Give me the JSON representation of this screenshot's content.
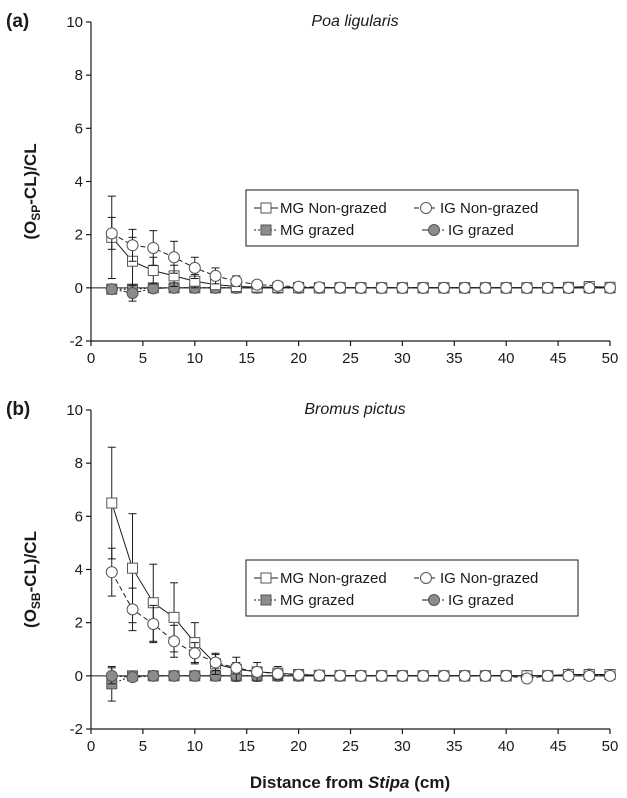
{
  "chart_data": [
    {
      "type": "line",
      "panel_label": "(a)",
      "title": "Poa ligularis",
      "ylabel_parts": [
        "(O",
        "SP",
        "-CL)/CL"
      ],
      "xlim": [
        0,
        50
      ],
      "ylim": [
        -2,
        10
      ],
      "x_ticks": [
        "0",
        "5",
        "10",
        "15",
        "20",
        "25",
        "30",
        "35",
        "40",
        "45",
        "50"
      ],
      "y_ticks": [
        "-2",
        "0",
        "2",
        "4",
        "6",
        "8",
        "10"
      ],
      "x": [
        2,
        4,
        6,
        8,
        10,
        12,
        14,
        16,
        18,
        20,
        22,
        24,
        26,
        28,
        30,
        32,
        34,
        36,
        38,
        40,
        42,
        44,
        46,
        48,
        50
      ],
      "series": [
        {
          "name": "MG Non-grazed",
          "marker": "square",
          "fill": "#ffffff",
          "line": "solid",
          "values": [
            1.9,
            1.0,
            0.65,
            0.45,
            0.25,
            0.12,
            0.05,
            0.03,
            0.02,
            0.01,
            0,
            0,
            0,
            0,
            0,
            0,
            0,
            0,
            0,
            0,
            0,
            0,
            0.02,
            0.05,
            0.02
          ],
          "err": [
            1.55,
            0.9,
            0.5,
            0.4,
            0.25,
            0.15,
            0.1,
            0.08,
            0.05,
            0.05,
            0.03,
            0.03,
            0.03,
            0.03,
            0.03,
            0.03,
            0.03,
            0.03,
            0.03,
            0.03,
            0.03,
            0.03,
            0.05,
            0.08,
            0.05
          ]
        },
        {
          "name": "IG Non-grazed",
          "marker": "circle",
          "fill": "#ffffff",
          "line": "dashed",
          "values": [
            2.05,
            1.6,
            1.5,
            1.15,
            0.75,
            0.45,
            0.25,
            0.12,
            0.08,
            0.04,
            0.02,
            0.01,
            0,
            0,
            0,
            0,
            0,
            0,
            0,
            0,
            0,
            0,
            0,
            0,
            0
          ],
          "err": [
            0.6,
            0.6,
            0.65,
            0.6,
            0.4,
            0.3,
            0.2,
            0.15,
            0.1,
            0.08,
            0.05,
            0.05,
            0.04,
            0.04,
            0.04,
            0.04,
            0.04,
            0.04,
            0.04,
            0.04,
            0.04,
            0.04,
            0.04,
            0.04,
            0.04
          ]
        },
        {
          "name": "MG grazed",
          "marker": "square",
          "fill": "#8c8c8c",
          "line": "dotted",
          "values": [
            -0.05,
            -0.05,
            0,
            0,
            0,
            0,
            0,
            0,
            0,
            0,
            0,
            0,
            0,
            0,
            0,
            0,
            0,
            0,
            0,
            0,
            0,
            0,
            0,
            0,
            0
          ],
          "err": [
            0.12,
            0.1,
            0.05,
            0.04,
            0.04,
            0.03,
            0.03,
            0.03,
            0.03,
            0.03,
            0.03,
            0.03,
            0.03,
            0.03,
            0.03,
            0.03,
            0.03,
            0.03,
            0.03,
            0.03,
            0.03,
            0.03,
            0.03,
            0.03,
            0.03
          ]
        },
        {
          "name": "IG grazed",
          "marker": "circle",
          "fill": "#8c8c8c",
          "line": "dashdot",
          "values": [
            -0.05,
            -0.2,
            -0.02,
            0,
            0,
            0,
            0,
            0,
            0,
            0,
            0,
            0,
            0,
            0,
            0,
            0,
            0,
            0,
            0,
            0,
            0,
            0,
            0,
            0,
            0
          ],
          "err": [
            0.12,
            0.3,
            0.08,
            0.05,
            0.04,
            0.03,
            0.03,
            0.03,
            0.03,
            0.03,
            0.03,
            0.03,
            0.03,
            0.03,
            0.03,
            0.03,
            0.03,
            0.03,
            0.03,
            0.03,
            0.03,
            0.03,
            0.03,
            0.03,
            0.03
          ]
        }
      ]
    },
    {
      "type": "line",
      "panel_label": "(b)",
      "title": "Bromus pictus",
      "ylabel_parts": [
        "(O",
        "SB",
        "-CL)/CL"
      ],
      "xlim": [
        0,
        50
      ],
      "ylim": [
        -2,
        10
      ],
      "x_ticks": [
        "0",
        "5",
        "10",
        "15",
        "20",
        "25",
        "30",
        "35",
        "40",
        "45",
        "50"
      ],
      "y_ticks": [
        "-2",
        "0",
        "2",
        "4",
        "6",
        "8",
        "10"
      ],
      "x": [
        2,
        4,
        6,
        8,
        10,
        12,
        14,
        16,
        18,
        20,
        22,
        24,
        26,
        28,
        30,
        32,
        34,
        36,
        38,
        40,
        42,
        44,
        46,
        48,
        50
      ],
      "series": [
        {
          "name": "MG Non-grazed",
          "marker": "square",
          "fill": "#ffffff",
          "line": "solid",
          "values": [
            6.5,
            4.05,
            2.75,
            2.2,
            1.25,
            0.45,
            0.25,
            0.15,
            0.1,
            0.05,
            0.02,
            0.01,
            0,
            0,
            0,
            0,
            0,
            0,
            0,
            0,
            0,
            0,
            0.05,
            0.05,
            0.05
          ],
          "err": [
            2.1,
            2.05,
            1.45,
            1.3,
            0.75,
            0.4,
            0.45,
            0.35,
            0.25,
            0.15,
            0.1,
            0.05,
            0.05,
            0.05,
            0.05,
            0.05,
            0.05,
            0.05,
            0.05,
            0.05,
            0.05,
            0.05,
            0.1,
            0.1,
            0.1
          ]
        },
        {
          "name": "IG Non-grazed",
          "marker": "circle",
          "fill": "#ffffff",
          "line": "dashed",
          "values": [
            3.9,
            2.5,
            1.95,
            1.3,
            0.85,
            0.5,
            0.3,
            0.15,
            0.08,
            0.04,
            0.02,
            0.01,
            0,
            0,
            0,
            0,
            0,
            0,
            0,
            0,
            -0.1,
            0,
            0,
            0,
            0
          ],
          "err": [
            0.9,
            0.8,
            0.7,
            0.6,
            0.4,
            0.3,
            0.2,
            0.15,
            0.1,
            0.08,
            0.05,
            0.05,
            0.04,
            0.04,
            0.04,
            0.04,
            0.04,
            0.04,
            0.04,
            0.04,
            0.08,
            0.05,
            0.05,
            0.05,
            0.05
          ]
        },
        {
          "name": "MG grazed",
          "marker": "square",
          "fill": "#8c8c8c",
          "line": "dotted",
          "values": [
            -0.3,
            0,
            0,
            0,
            0,
            0,
            0,
            0,
            0,
            0,
            0,
            0,
            0,
            0,
            0,
            0,
            0,
            0,
            0,
            0,
            0,
            0,
            0.05,
            0.05,
            0.05
          ],
          "err": [
            0.65,
            0.15,
            0.08,
            0.05,
            0.05,
            0.04,
            0.04,
            0.04,
            0.04,
            0.04,
            0.04,
            0.04,
            0.04,
            0.04,
            0.04,
            0.04,
            0.04,
            0.04,
            0.04,
            0.04,
            0.04,
            0.04,
            0.08,
            0.08,
            0.08
          ]
        },
        {
          "name": "IG grazed",
          "marker": "circle",
          "fill": "#8c8c8c",
          "line": "dashdot",
          "values": [
            0,
            -0.05,
            0,
            0,
            0,
            0,
            0,
            0,
            0,
            0,
            0,
            0,
            0,
            0,
            0,
            0,
            0,
            0,
            0,
            0,
            0,
            0,
            0.05,
            0.05,
            0.02
          ],
          "err": [
            0.3,
            0.12,
            0.05,
            0.05,
            0.04,
            0.04,
            0.04,
            0.04,
            0.04,
            0.04,
            0.04,
            0.04,
            0.04,
            0.04,
            0.04,
            0.04,
            0.04,
            0.04,
            0.04,
            0.04,
            0.04,
            0.04,
            0.08,
            0.08,
            0.05
          ]
        }
      ]
    }
  ],
  "xlabel": {
    "prefix": "Distance from ",
    "italic": "Stipa",
    "suffix": " (cm)"
  }
}
